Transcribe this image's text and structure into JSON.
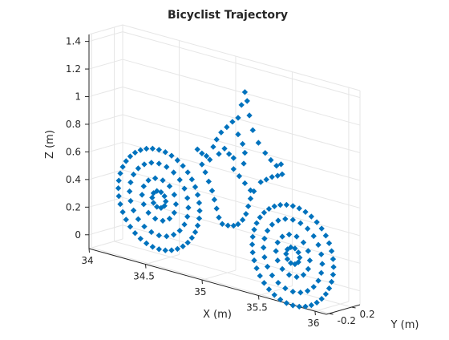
{
  "chart_data": {
    "type": "scatter3d",
    "title": "Bicyclist Trajectory",
    "xlabel": "X (m)",
    "ylabel": "Y (m)",
    "zlabel": "Z (m)",
    "xlim": [
      34.0,
      36.1
    ],
    "ylim": [
      -0.25,
      0.35
    ],
    "zlim": [
      -0.1,
      1.45
    ],
    "xticks": [
      {
        "value": 34,
        "label": "34"
      },
      {
        "value": 34.5,
        "label": "34.5"
      },
      {
        "value": 35,
        "label": "35"
      },
      {
        "value": 35.5,
        "label": "35.5"
      },
      {
        "value": 36,
        "label": "36"
      }
    ],
    "yticks": [
      {
        "value": -0.2,
        "label": "-0.2"
      },
      {
        "value": 0.2,
        "label": "0.2"
      }
    ],
    "zticks": [
      {
        "value": 0,
        "label": "0"
      },
      {
        "value": 0.2,
        "label": "0.2"
      },
      {
        "value": 0.4,
        "label": "0.4"
      },
      {
        "value": 0.6,
        "label": "0.6"
      },
      {
        "value": 0.8,
        "label": "0.8"
      },
      {
        "value": 1,
        "label": "1"
      },
      {
        "value": 1.2,
        "label": "1.2"
      },
      {
        "value": 1.4,
        "label": "1.4"
      }
    ],
    "grid": true,
    "marker_color": "#0072BD",
    "series": [
      {
        "part": "rear-wheel-rings",
        "rings": [
          {
            "center": [
              34.52,
              -0.05,
              0.35
            ],
            "radius": 0.36,
            "points": 40
          },
          {
            "center": [
              34.52,
              -0.05,
              0.35
            ],
            "radius": 0.26,
            "points": 24
          },
          {
            "center": [
              34.52,
              -0.05,
              0.35
            ],
            "radius": 0.15,
            "points": 14
          },
          {
            "center": [
              34.52,
              -0.05,
              0.35
            ],
            "radius": 0.06,
            "points": 10
          }
        ]
      },
      {
        "part": "front-wheel-rings",
        "rings": [
          {
            "center": [
              35.68,
              0.0,
              0.2
            ],
            "radius": 0.36,
            "points": 40
          },
          {
            "center": [
              35.68,
              0.0,
              0.2
            ],
            "radius": 0.26,
            "points": 24
          },
          {
            "center": [
              35.68,
              0.0,
              0.2
            ],
            "radius": 0.15,
            "points": 14
          },
          {
            "center": [
              35.68,
              0.0,
              0.2
            ],
            "radius": 0.06,
            "points": 10
          }
        ]
      },
      {
        "part": "frame",
        "points": [
          [
            34.86,
            -0.05,
            0.79
          ],
          [
            34.9,
            -0.05,
            0.77
          ],
          [
            34.94,
            -0.05,
            0.76
          ],
          [
            34.97,
            -0.05,
            0.74
          ],
          [
            34.9,
            -0.05,
            0.69
          ],
          [
            34.93,
            -0.05,
            0.64
          ],
          [
            34.96,
            -0.05,
            0.58
          ],
          [
            34.99,
            -0.05,
            0.52
          ],
          [
            35.01,
            -0.05,
            0.46
          ],
          [
            35.03,
            -0.05,
            0.4
          ],
          [
            35.05,
            -0.05,
            0.34
          ],
          [
            35.08,
            -0.05,
            0.3
          ],
          [
            35.13,
            -0.05,
            0.3
          ],
          [
            35.18,
            -0.05,
            0.31
          ],
          [
            35.22,
            -0.05,
            0.33
          ],
          [
            35.26,
            -0.05,
            0.37
          ],
          [
            35.29,
            -0.05,
            0.42
          ],
          [
            35.31,
            -0.05,
            0.48
          ],
          [
            35.33,
            -0.05,
            0.54
          ],
          [
            35.36,
            -0.05,
            0.6
          ],
          [
            35.42,
            -0.05,
            0.68
          ],
          [
            35.47,
            -0.05,
            0.71
          ],
          [
            35.52,
            -0.05,
            0.74
          ],
          [
            35.57,
            -0.05,
            0.76
          ],
          [
            35.61,
            -0.05,
            0.78
          ],
          [
            35.18,
            -0.05,
            0.72
          ],
          [
            35.23,
            -0.05,
            0.68
          ],
          [
            35.28,
            -0.05,
            0.64
          ],
          [
            35.33,
            -0.05,
            0.6
          ],
          [
            35.05,
            -0.05,
            0.8
          ],
          [
            35.1,
            -0.05,
            0.85
          ],
          [
            35.14,
            -0.05,
            0.82
          ],
          [
            35.18,
            -0.05,
            0.8
          ]
        ]
      },
      {
        "part": "rider",
        "points": [
          [
            35.0,
            -0.05,
            0.84
          ],
          [
            35.03,
            -0.05,
            0.9
          ],
          [
            35.07,
            -0.05,
            0.96
          ],
          [
            35.12,
            -0.05,
            1.01
          ],
          [
            35.17,
            -0.05,
            1.06
          ],
          [
            35.22,
            -0.05,
            1.1
          ],
          [
            35.25,
            -0.05,
            1.2
          ],
          [
            35.28,
            -0.05,
            1.3
          ],
          [
            35.3,
            -0.05,
            1.24
          ],
          [
            35.32,
            -0.05,
            1.14
          ],
          [
            35.35,
            -0.05,
            1.04
          ],
          [
            35.4,
            -0.05,
            0.96
          ],
          [
            35.46,
            -0.05,
            0.9
          ],
          [
            35.51,
            -0.05,
            0.86
          ],
          [
            35.56,
            -0.05,
            0.83
          ],
          [
            35.6,
            -0.05,
            0.85
          ],
          [
            35.22,
            -0.05,
            0.98
          ],
          [
            35.26,
            -0.05,
            0.92
          ],
          [
            35.28,
            -0.05,
            0.86
          ],
          [
            35.27,
            -0.05,
            0.78
          ]
        ]
      }
    ]
  }
}
